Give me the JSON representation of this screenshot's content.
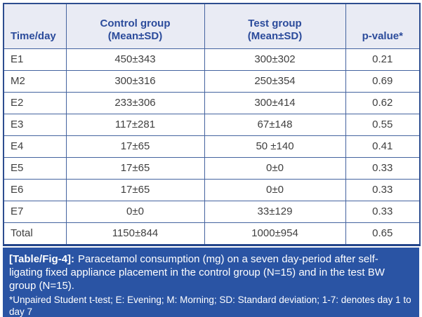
{
  "table": {
    "columns": [
      "Time/day",
      "Control group\n(Mean±SD)",
      "Test group\n(Mean±SD)",
      "p-value*"
    ],
    "rows": [
      [
        "E1",
        "450±343",
        "300±302",
        "0.21"
      ],
      [
        "M2",
        "300±316",
        "250±354",
        "0.69"
      ],
      [
        "E2",
        "233±306",
        "300±414",
        "0.62"
      ],
      [
        "E3",
        "117±281",
        "67±148",
        "0.55"
      ],
      [
        "E4",
        "17±65",
        "50 ±140",
        "0.41"
      ],
      [
        "E5",
        "17±65",
        "0±0",
        "0.33"
      ],
      [
        "E6",
        "17±65",
        "0±0",
        "0.33"
      ],
      [
        "E7",
        "0±0",
        "33±129",
        "0.33"
      ],
      [
        "Total",
        "1150±844",
        "1000±954",
        "0.65"
      ]
    ]
  },
  "caption": {
    "label": "[Table/Fig-4]:",
    "text": "Paracetamol consumption (mg) on a seven day-period after self-\nligating fixed appliance placement in the control group (N=15) and in the test BW\ngroup (N=15)."
  },
  "footnote": "*Unpaired Student t-test; E: Evening; M: Morning; SD: Standard deviation; 1-7: denotes day 1 to\nday 7",
  "colors": {
    "header_bg": "#e9ebf4",
    "header_text": "#2b4b9b",
    "grid_border": "#44639f",
    "outer_border": "#2d4d8f",
    "body_text": "#3f3f3f",
    "caption_band_bg": "#2a54a4",
    "caption_text": "#ffffff"
  }
}
